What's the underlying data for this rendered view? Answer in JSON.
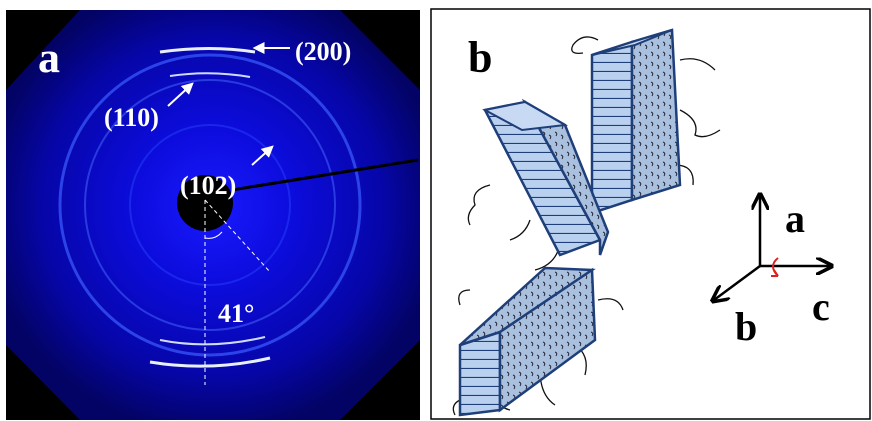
{
  "panel_a": {
    "label": "a",
    "peaks": [
      "(200)",
      "(110)",
      "(102)"
    ],
    "angle": "41°"
  },
  "panel_b": {
    "label": "b",
    "axes": [
      "a",
      "b",
      "c"
    ]
  }
}
